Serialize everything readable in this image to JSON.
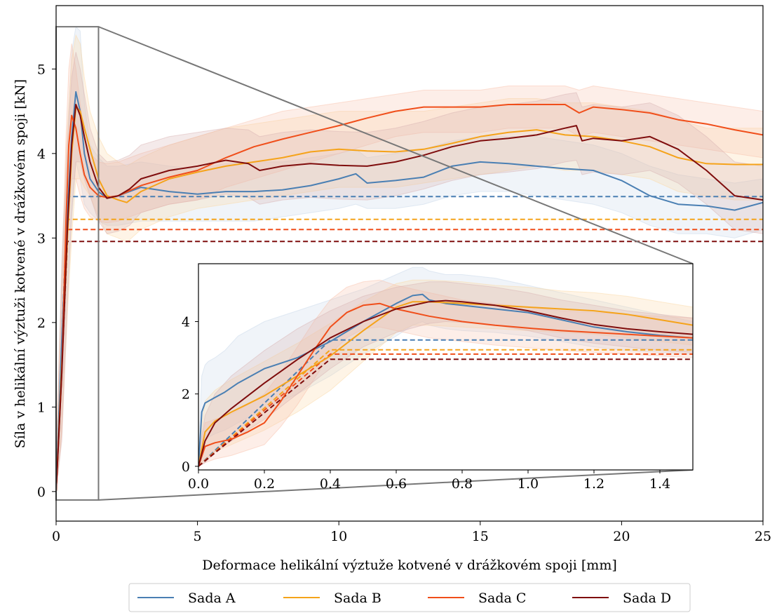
{
  "chart_data": [
    {
      "type": "line",
      "title": "",
      "xlabel": "Deformace helikální výztuže kotvené v drážkovém spoji [mm]",
      "ylabel": "Síla v helikální výztuži kotvené v drážkovém spoji [kN]",
      "xlim": [
        0,
        25
      ],
      "ylim": [
        -0.35,
        5.75
      ],
      "xticks": [
        "0",
        "5",
        "10",
        "15",
        "20",
        "25"
      ],
      "yticks": [
        "0",
        "1",
        "2",
        "3",
        "4",
        "5"
      ],
      "grid": false,
      "legend_position": "bottom-center",
      "series": [
        {
          "name": "Sada A",
          "color": "#4a7fb3",
          "band_color": "#c8d8ea",
          "limit": 3.49,
          "x": [
            0,
            0.2,
            0.4,
            0.55,
            0.7,
            0.85,
            1.0,
            1.2,
            1.5,
            1.8,
            2.2,
            3.0,
            4.0,
            5.0,
            6.0,
            7.0,
            8.0,
            9.0,
            10.0,
            10.6,
            11.0,
            12.0,
            13.0,
            14.0,
            15.0,
            16.0,
            17.0,
            18.0,
            19.0,
            20.0,
            21.0,
            22.0,
            23.0,
            24.0,
            25.0
          ],
          "y": [
            0,
            1.8,
            3.3,
            4.2,
            4.73,
            4.5,
            4.0,
            3.7,
            3.55,
            3.47,
            3.5,
            3.6,
            3.55,
            3.52,
            3.55,
            3.55,
            3.57,
            3.62,
            3.7,
            3.76,
            3.65,
            3.68,
            3.72,
            3.85,
            3.9,
            3.88,
            3.85,
            3.82,
            3.8,
            3.68,
            3.5,
            3.4,
            3.38,
            3.33,
            3.42
          ],
          "band_hi": [
            0.3,
            2.8,
            4.2,
            5.2,
            5.5,
            5.45,
            4.6,
            4.1,
            3.95,
            3.85,
            3.85,
            3.9,
            3.85,
            3.82,
            3.88,
            3.9,
            3.9,
            3.95,
            4.0,
            4.05,
            3.95,
            4.0,
            4.05,
            4.15,
            4.2,
            4.2,
            4.2,
            4.15,
            4.1,
            4.0,
            3.85,
            3.75,
            3.7,
            3.65,
            3.7
          ],
          "band_lo": [
            0,
            0.8,
            2.4,
            3.2,
            3.9,
            3.7,
            3.4,
            3.3,
            3.2,
            3.15,
            3.15,
            3.2,
            3.2,
            3.2,
            3.2,
            3.2,
            3.25,
            3.3,
            3.35,
            3.4,
            3.35,
            3.35,
            3.4,
            3.5,
            3.55,
            3.55,
            3.5,
            3.45,
            3.4,
            3.3,
            3.15,
            3.05,
            3.05,
            3.0,
            3.1
          ]
        },
        {
          "name": "Sada B",
          "color": "#f5a31a",
          "band_color": "#fbd9a6",
          "limit": 3.22,
          "x": [
            0,
            0.2,
            0.4,
            0.55,
            0.7,
            0.85,
            1.0,
            1.2,
            1.5,
            1.8,
            2.2,
            2.5,
            3.0,
            4.0,
            5.0,
            6.0,
            7.0,
            8.0,
            9.0,
            10.0,
            11.0,
            12.0,
            13.0,
            14.0,
            15.0,
            16.0,
            17.0,
            18.0,
            19.0,
            20.0,
            21.0,
            22.0,
            23.0,
            24.0,
            25.0
          ],
          "y": [
            0,
            1.5,
            3.0,
            4.0,
            4.55,
            4.5,
            4.3,
            4.05,
            3.7,
            3.5,
            3.45,
            3.42,
            3.55,
            3.7,
            3.78,
            3.85,
            3.9,
            3.95,
            4.02,
            4.05,
            4.03,
            4.02,
            4.05,
            4.12,
            4.2,
            4.25,
            4.28,
            4.22,
            4.2,
            4.15,
            4.08,
            3.95,
            3.88,
            3.87,
            3.87
          ],
          "band_hi": [
            0.4,
            2.6,
            4.3,
            5.1,
            5.4,
            5.3,
            4.9,
            4.5,
            4.2,
            4.0,
            3.9,
            3.85,
            3.95,
            4.1,
            4.2,
            4.3,
            4.35,
            4.4,
            4.45,
            4.5,
            4.5,
            4.5,
            4.5,
            4.55,
            4.6,
            4.65,
            4.65,
            4.6,
            4.6,
            4.55,
            4.5,
            4.4,
            4.3,
            4.3,
            4.3
          ],
          "band_lo": [
            0,
            0.7,
            2.1,
            3.0,
            3.7,
            3.7,
            3.6,
            3.5,
            3.25,
            3.05,
            3.0,
            2.95,
            3.1,
            3.25,
            3.35,
            3.4,
            3.45,
            3.5,
            3.55,
            3.6,
            3.6,
            3.6,
            3.65,
            3.7,
            3.75,
            3.8,
            3.85,
            3.8,
            3.8,
            3.75,
            3.7,
            3.55,
            3.5,
            3.45,
            3.45
          ]
        },
        {
          "name": "Sada C",
          "color": "#f04e1a",
          "band_color": "#f9c2ac",
          "limit": 3.1,
          "x": [
            0,
            0.2,
            0.35,
            0.45,
            0.55,
            0.7,
            0.85,
            1.0,
            1.2,
            1.5,
            1.8,
            2.2,
            3.0,
            4.0,
            5.0,
            6.0,
            7.0,
            8.0,
            9.0,
            10.0,
            11.0,
            12.0,
            13.0,
            14.0,
            15.0,
            16.0,
            17.0,
            18.0,
            18.5,
            19.0,
            20.0,
            21.0,
            22.0,
            23.0,
            24.0,
            25.0
          ],
          "y": [
            0,
            1.4,
            3.2,
            4.1,
            4.45,
            4.3,
            4.0,
            3.75,
            3.6,
            3.5,
            3.48,
            3.5,
            3.62,
            3.72,
            3.8,
            3.95,
            4.08,
            4.17,
            4.25,
            4.33,
            4.42,
            4.5,
            4.55,
            4.55,
            4.55,
            4.58,
            4.58,
            4.58,
            4.48,
            4.55,
            4.52,
            4.48,
            4.4,
            4.35,
            4.28,
            4.22
          ],
          "band_hi": [
            0.4,
            2.5,
            4.2,
            5.0,
            5.3,
            5.0,
            4.6,
            4.2,
            4.0,
            3.9,
            3.88,
            3.9,
            4.0,
            4.1,
            4.2,
            4.3,
            4.4,
            4.5,
            4.55,
            4.6,
            4.65,
            4.7,
            4.75,
            4.75,
            4.75,
            4.8,
            4.8,
            4.8,
            4.75,
            4.8,
            4.75,
            4.7,
            4.65,
            4.6,
            4.55,
            4.5
          ],
          "band_lo": [
            0,
            0.7,
            2.4,
            3.3,
            3.7,
            3.7,
            3.5,
            3.35,
            3.25,
            3.2,
            3.18,
            3.2,
            3.3,
            3.4,
            3.45,
            3.6,
            3.7,
            3.8,
            3.9,
            4.0,
            4.1,
            4.2,
            4.25,
            4.25,
            4.25,
            4.3,
            4.3,
            4.3,
            4.2,
            4.25,
            4.2,
            4.15,
            4.1,
            4.05,
            4.0,
            3.95
          ]
        },
        {
          "name": "Sada D",
          "color": "#7f0d0d",
          "band_color": "#d9b3b3",
          "limit": 2.96,
          "x": [
            0,
            0.2,
            0.4,
            0.55,
            0.7,
            0.85,
            1.0,
            1.2,
            1.5,
            1.8,
            2.2,
            2.6,
            3.0,
            4.0,
            5.0,
            6.0,
            6.8,
            7.2,
            8.0,
            9.0,
            10.0,
            11.0,
            12.0,
            13.0,
            14.0,
            15.0,
            16.0,
            17.0,
            18.0,
            18.4,
            18.6,
            19.0,
            20.0,
            21.0,
            22.0,
            23.0,
            24.0,
            25.0
          ],
          "y": [
            0,
            1.4,
            3.1,
            4.1,
            4.58,
            4.45,
            4.2,
            3.9,
            3.6,
            3.47,
            3.5,
            3.58,
            3.7,
            3.8,
            3.85,
            3.92,
            3.88,
            3.8,
            3.85,
            3.88,
            3.86,
            3.85,
            3.9,
            3.98,
            4.08,
            4.15,
            4.18,
            4.22,
            4.3,
            4.33,
            4.15,
            4.18,
            4.15,
            4.2,
            4.05,
            3.8,
            3.5,
            3.45
          ],
          "band_hi": [
            0.4,
            2.5,
            4.1,
            4.9,
            5.2,
            5.0,
            4.7,
            4.3,
            4.0,
            3.9,
            3.92,
            3.98,
            4.1,
            4.2,
            4.25,
            4.3,
            4.28,
            4.2,
            4.25,
            4.28,
            4.26,
            4.25,
            4.3,
            4.38,
            4.48,
            4.55,
            4.58,
            4.62,
            4.7,
            4.72,
            4.55,
            4.58,
            4.55,
            4.6,
            4.45,
            4.2,
            3.9,
            3.85
          ],
          "band_lo": [
            0,
            0.6,
            2.2,
            3.3,
            3.9,
            3.9,
            3.7,
            3.5,
            3.2,
            3.05,
            3.08,
            3.15,
            3.3,
            3.4,
            3.45,
            3.52,
            3.48,
            3.4,
            3.45,
            3.48,
            3.46,
            3.45,
            3.5,
            3.58,
            3.68,
            3.75,
            3.78,
            3.82,
            3.9,
            3.92,
            3.75,
            3.78,
            3.75,
            3.8,
            3.65,
            3.4,
            3.1,
            3.05
          ]
        }
      ],
      "zoom_region": {
        "xlim": [
          0,
          1.5
        ],
        "ylim": [
          -0.1,
          5.5
        ]
      }
    },
    {
      "type": "line",
      "title": "",
      "xlabel": "",
      "ylabel": "",
      "xlim": [
        0,
        1.5
      ],
      "ylim": [
        -0.1,
        5.6
      ],
      "xticks": [
        "0.0",
        "0.2",
        "0.4",
        "0.6",
        "0.8",
        "1.0",
        "1.2",
        "1.4"
      ],
      "yticks": [
        "0",
        "2",
        "4"
      ],
      "series": [
        {
          "name": "Sada A",
          "x": [
            0,
            0.01,
            0.02,
            0.03,
            0.05,
            0.08,
            0.12,
            0.2,
            0.3,
            0.4,
            0.5,
            0.6,
            0.65,
            0.68,
            0.7,
            0.75,
            0.8,
            0.9,
            1.0,
            1.1,
            1.2,
            1.3,
            1.4,
            1.5
          ],
          "y": [
            0,
            1.5,
            1.75,
            1.8,
            1.9,
            2.05,
            2.3,
            2.7,
            3.0,
            3.45,
            4.0,
            4.5,
            4.72,
            4.75,
            4.6,
            4.5,
            4.45,
            4.35,
            4.25,
            4.05,
            3.85,
            3.72,
            3.62,
            3.55
          ],
          "band_hi": [
            0.5,
            2.5,
            2.8,
            2.9,
            3.0,
            3.2,
            3.6,
            4.0,
            4.3,
            4.6,
            4.9,
            5.3,
            5.5,
            5.5,
            5.4,
            5.3,
            5.3,
            5.2,
            5.0,
            4.8,
            4.6,
            4.4,
            4.2,
            4.0
          ],
          "band_lo": [
            0,
            0.5,
            0.7,
            0.8,
            0.9,
            1.0,
            1.2,
            1.6,
            2.0,
            2.5,
            3.1,
            3.6,
            3.9,
            4.0,
            3.9,
            3.8,
            3.75,
            3.7,
            3.6,
            3.45,
            3.3,
            3.2,
            3.15,
            3.1
          ],
          "limit_points": [
            [
              0,
              0
            ],
            [
              0.4,
              3.49
            ],
            [
              1.5,
              3.49
            ]
          ]
        },
        {
          "name": "Sada B",
          "x": [
            0,
            0.02,
            0.05,
            0.1,
            0.2,
            0.3,
            0.4,
            0.5,
            0.6,
            0.65,
            0.7,
            0.8,
            0.9,
            1.0,
            1.1,
            1.2,
            1.3,
            1.4,
            1.5
          ],
          "y": [
            0,
            0.95,
            1.25,
            1.5,
            1.95,
            2.5,
            3.05,
            3.75,
            4.4,
            4.55,
            4.55,
            4.5,
            4.45,
            4.4,
            4.35,
            4.3,
            4.2,
            4.05,
            3.9
          ],
          "band_hi": [
            0.4,
            1.8,
            2.1,
            2.4,
            2.9,
            3.4,
            3.95,
            4.55,
            5.05,
            5.15,
            5.15,
            5.1,
            5.0,
            4.95,
            4.85,
            4.8,
            4.7,
            4.55,
            4.4
          ],
          "band_lo": [
            0,
            0.2,
            0.4,
            0.6,
            1.0,
            1.5,
            2.1,
            2.9,
            3.7,
            3.9,
            3.9,
            3.85,
            3.8,
            3.75,
            3.7,
            3.65,
            3.55,
            3.45,
            3.35
          ],
          "limit_points": [
            [
              0,
              0
            ],
            [
              0.4,
              3.22
            ],
            [
              1.5,
              3.22
            ]
          ]
        },
        {
          "name": "Sada C",
          "x": [
            0,
            0.02,
            0.05,
            0.1,
            0.15,
            0.2,
            0.25,
            0.3,
            0.35,
            0.4,
            0.45,
            0.5,
            0.55,
            0.6,
            0.7,
            0.8,
            0.9,
            1.0,
            1.1,
            1.2,
            1.3,
            1.4,
            1.5
          ],
          "y": [
            0,
            0.55,
            0.65,
            0.75,
            0.95,
            1.2,
            1.8,
            2.5,
            3.2,
            3.85,
            4.25,
            4.45,
            4.5,
            4.35,
            4.15,
            4.0,
            3.9,
            3.82,
            3.75,
            3.7,
            3.65,
            3.6,
            3.55
          ],
          "band_hi": [
            0.3,
            1.2,
            1.3,
            1.45,
            1.7,
            2.0,
            2.6,
            3.3,
            4.0,
            4.6,
            4.95,
            5.1,
            5.15,
            5.0,
            4.8,
            4.6,
            4.5,
            4.4,
            4.3,
            4.25,
            4.2,
            4.15,
            4.1
          ],
          "band_lo": [
            0,
            0.1,
            0.2,
            0.3,
            0.45,
            0.6,
            1.1,
            1.7,
            2.4,
            3.1,
            3.55,
            3.8,
            3.85,
            3.75,
            3.55,
            3.45,
            3.35,
            3.28,
            3.2,
            3.15,
            3.1,
            3.05,
            3.0
          ],
          "limit_points": [
            [
              0,
              0
            ],
            [
              0.4,
              3.1
            ],
            [
              1.5,
              3.1
            ]
          ]
        },
        {
          "name": "Sada D",
          "x": [
            0,
            0.02,
            0.05,
            0.1,
            0.2,
            0.3,
            0.4,
            0.5,
            0.6,
            0.7,
            0.75,
            0.8,
            0.9,
            1.0,
            1.1,
            1.2,
            1.3,
            1.4,
            1.5
          ],
          "y": [
            0,
            0.7,
            1.2,
            1.6,
            2.3,
            2.95,
            3.55,
            4.0,
            4.35,
            4.55,
            4.58,
            4.55,
            4.45,
            4.3,
            4.1,
            3.92,
            3.8,
            3.72,
            3.65
          ],
          "band_hi": [
            0.3,
            1.4,
            2.0,
            2.5,
            3.2,
            3.8,
            4.3,
            4.7,
            4.95,
            5.1,
            5.1,
            5.05,
            4.95,
            4.8,
            4.6,
            4.45,
            4.3,
            4.2,
            4.1
          ],
          "band_lo": [
            0,
            0.1,
            0.4,
            0.7,
            1.3,
            2.0,
            2.7,
            3.3,
            3.7,
            3.95,
            4.0,
            3.98,
            3.9,
            3.75,
            3.55,
            3.4,
            3.3,
            3.2,
            3.15
          ],
          "limit_points": [
            [
              0,
              0
            ],
            [
              0.4,
              2.96
            ],
            [
              1.5,
              2.96
            ]
          ]
        }
      ]
    }
  ]
}
